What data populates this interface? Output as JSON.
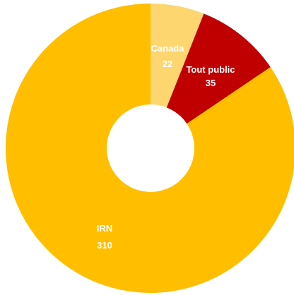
{
  "chart_data": {
    "type": "pie",
    "variant": "donut",
    "title": "",
    "legend": "none",
    "slices": [
      {
        "label": "Canada",
        "value": 22,
        "color": "#fdd670"
      },
      {
        "label": "Tout public",
        "value": 35,
        "color": "#c00000"
      },
      {
        "label": "IRN",
        "value": 310,
        "color": "#ffbe00"
      }
    ]
  }
}
